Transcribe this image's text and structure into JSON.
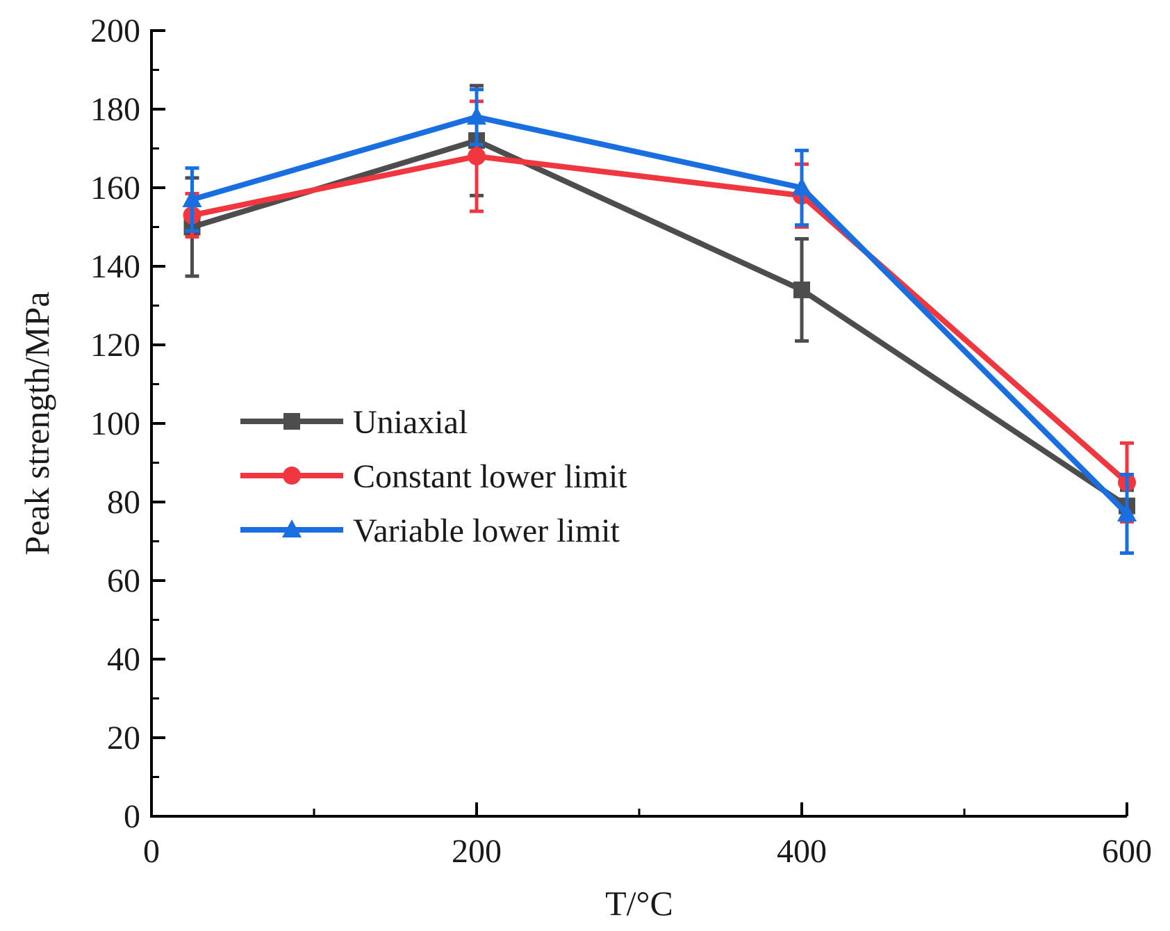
{
  "chart_data": {
    "type": "line",
    "xlabel": "T/°C",
    "ylabel": "Peak strength/MPa",
    "xlim": [
      0,
      600
    ],
    "ylim": [
      0,
      200
    ],
    "xticks": [
      0,
      200,
      400,
      600
    ],
    "yticks": [
      0,
      20,
      40,
      60,
      80,
      100,
      120,
      140,
      160,
      180,
      200
    ],
    "grid": false,
    "legend_position": "center-left",
    "series": [
      {
        "name": "Uniaxial",
        "color": "#4d4d4d",
        "marker": "square",
        "x": [
          25,
          200,
          400,
          600
        ],
        "y": [
          150,
          172,
          134,
          79
        ],
        "err": [
          12.5,
          14,
          13,
          4
        ]
      },
      {
        "name": "Constant lower limit",
        "color": "#f0363f",
        "marker": "circle",
        "x": [
          25,
          200,
          400,
          600
        ],
        "y": [
          153,
          168,
          158,
          85
        ],
        "err": [
          5.5,
          14,
          8,
          10
        ]
      },
      {
        "name": "Variable lower limit",
        "color": "#1a6fe0",
        "marker": "triangle",
        "x": [
          25,
          200,
          400,
          600
        ],
        "y": [
          157,
          178,
          160,
          77
        ],
        "err": [
          8,
          7,
          9.5,
          10
        ]
      }
    ]
  }
}
